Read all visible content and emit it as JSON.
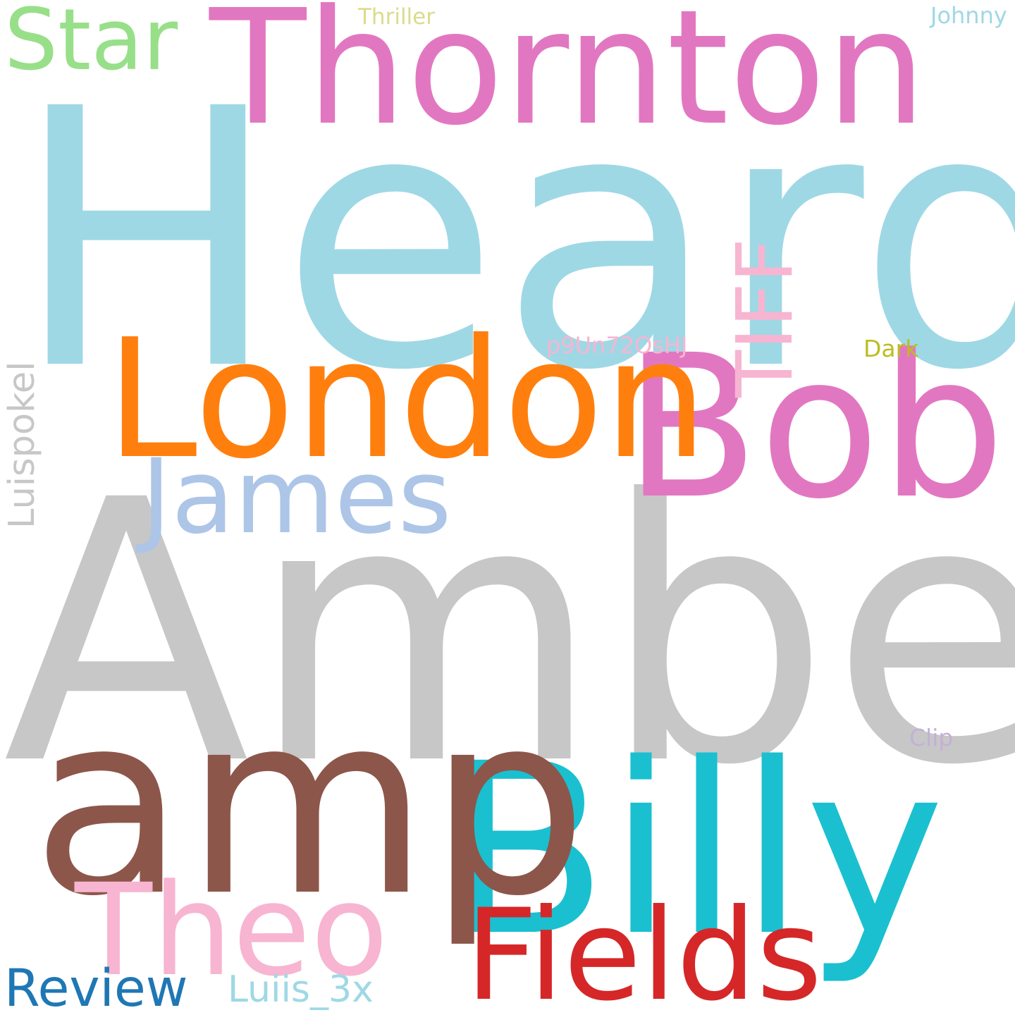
{
  "words": [
    {
      "text": "Heard",
      "color": "#9fd8e5"
    },
    {
      "text": "Amber",
      "color": "#c7c7c7"
    },
    {
      "text": "Thornton",
      "color": "#e277c1"
    },
    {
      "text": "Billy",
      "color": "#1ac0d0"
    },
    {
      "text": "amp",
      "color": "#8d564a"
    },
    {
      "text": "Bob",
      "color": "#e277c1"
    },
    {
      "text": "London",
      "color": "#ff7f0e"
    },
    {
      "text": "Fields",
      "color": "#d52728"
    },
    {
      "text": "Theo",
      "color": "#f7b5d1"
    },
    {
      "text": "James",
      "color": "#adc5e7"
    },
    {
      "text": "Star",
      "color": "#98df89"
    },
    {
      "text": "TIFF",
      "color": "#f7b5d1"
    },
    {
      "text": "Review",
      "color": "#1f77b4"
    },
    {
      "text": "Luiis_3x",
      "color": "#9fd8e5"
    },
    {
      "text": "Luispokel",
      "color": "#c7c7c7"
    },
    {
      "text": "p9Un72OsHJ",
      "color": "#f7b5d1"
    },
    {
      "text": "Dark",
      "color": "#bcbd22"
    },
    {
      "text": "Clip",
      "color": "#c4b0d5"
    },
    {
      "text": "Johnny",
      "color": "#9fd8e5"
    },
    {
      "text": "Thriller",
      "color": "#dbdb8d"
    }
  ]
}
